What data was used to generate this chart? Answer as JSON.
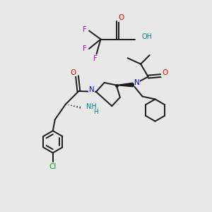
{
  "bg_color": "#e8e8e8",
  "bond_color": "#1a1a1a",
  "bond_width": 1.4,
  "atom_colors": {
    "N": "#0000ff",
    "O": "#ff0000",
    "F": "#cc00cc",
    "Cl": "#00aa00",
    "NH2": "#008888",
    "C": "#1a1a1a",
    "H": "#008888"
  },
  "font_size": 7.0
}
